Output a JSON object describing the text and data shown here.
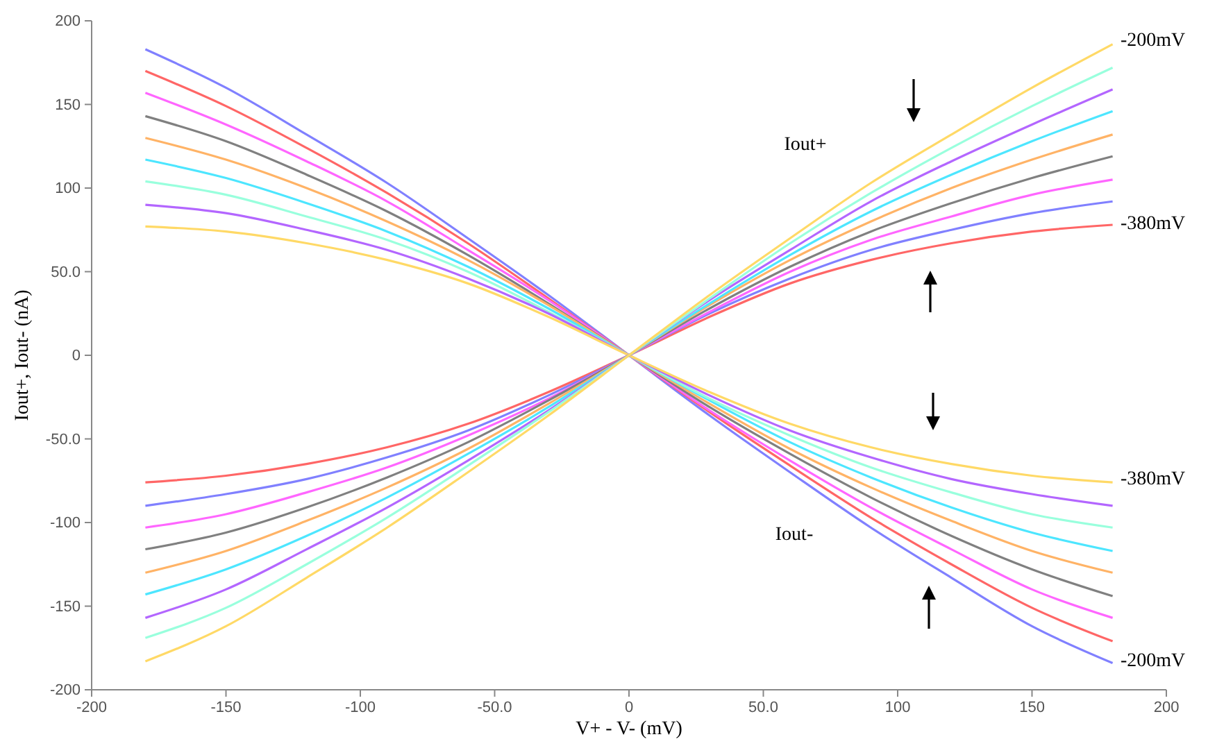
{
  "chart_data": {
    "type": "line",
    "xlabel": "V+ - V- (mV)",
    "ylabel": "Iout+, Iout- (nA)",
    "x": [
      -180,
      -150,
      -120,
      -90,
      -60,
      -30,
      0,
      30,
      60,
      90,
      120,
      150,
      180
    ],
    "xlim": [
      -200,
      200
    ],
    "ylim": [
      -200,
      200
    ],
    "xticks": [
      -200,
      -150,
      -100,
      {
        "value": -50,
        "label": "-50.0"
      },
      0,
      {
        "value": 50,
        "label": "50.0"
      },
      100,
      150,
      200
    ],
    "yticks": [
      -200,
      -150,
      -100,
      {
        "value": -50,
        "label": "-50.0"
      },
      0,
      {
        "value": 50,
        "label": "50.0"
      },
      100,
      150,
      200
    ],
    "grid": false,
    "marker": "none",
    "line_style": "solid",
    "series": [
      {
        "color": "#8080ff",
        "values": [
          183,
          160,
          132,
          103,
          70,
          36,
          0,
          -36,
          -70,
          -103,
          -133,
          -162,
          -184
        ]
      },
      {
        "color": "#ff6666",
        "values": [
          170,
          149,
          124,
          97,
          67,
          34,
          0,
          -34,
          -66,
          -97,
          -125,
          -151,
          -171
        ]
      },
      {
        "color": "#ff66ff",
        "values": [
          157,
          138,
          116,
          92,
          63,
          33,
          0,
          -33,
          -63,
          -91,
          -116,
          -140,
          -157
        ]
      },
      {
        "color": "#808080",
        "values": [
          143,
          128,
          108,
          86,
          60,
          31,
          0,
          -31,
          -59,
          -85,
          -108,
          -128,
          -144
        ]
      },
      {
        "color": "#ffb366",
        "values": [
          130,
          117,
          100,
          80,
          57,
          30,
          0,
          -29,
          -56,
          -79,
          -99,
          -117,
          -130
        ]
      },
      {
        "color": "#4de6ff",
        "values": [
          117,
          106,
          91,
          74,
          53,
          28,
          0,
          -27,
          -52,
          -73,
          -91,
          -106,
          -117
        ]
      },
      {
        "color": "#99ffdd",
        "values": [
          104,
          96,
          83,
          69,
          50,
          26,
          0,
          -26,
          -48,
          -67,
          -82,
          -95,
          -103
        ]
      },
      {
        "color": "#b366ff",
        "values": [
          90,
          85,
          75,
          63,
          46,
          25,
          0,
          -24,
          -45,
          -61,
          -74,
          -83,
          -90
        ]
      },
      {
        "color": "#ffd966",
        "values": [
          77,
          74,
          67,
          57,
          43,
          23,
          0,
          -22,
          -41,
          -55,
          -65,
          -72,
          -76
        ]
      },
      {
        "color": "#ff6666",
        "values": [
          -76,
          -72,
          -65,
          -55,
          -41,
          -22,
          0,
          23,
          43,
          57,
          67,
          74,
          78
        ]
      },
      {
        "color": "#8080ff",
        "values": [
          -90,
          -83,
          -74,
          -61,
          -45,
          -24,
          0,
          25,
          46,
          63,
          75,
          85,
          92
        ]
      },
      {
        "color": "#ff66ff",
        "values": [
          -103,
          -95,
          -82,
          -67,
          -48,
          -26,
          0,
          26,
          50,
          69,
          83,
          96,
          105
        ]
      },
      {
        "color": "#808080",
        "values": [
          -116,
          -106,
          -91,
          -73,
          -52,
          -27,
          0,
          28,
          53,
          74,
          91,
          106,
          119
        ]
      },
      {
        "color": "#ffb366",
        "values": [
          -130,
          -117,
          -99,
          -79,
          -56,
          -29,
          0,
          30,
          57,
          80,
          100,
          117,
          132
        ]
      },
      {
        "color": "#4de6ff",
        "values": [
          -143,
          -128,
          -108,
          -85,
          -59,
          -31,
          0,
          31,
          60,
          86,
          108,
          128,
          146
        ]
      },
      {
        "color": "#b366ff",
        "values": [
          -157,
          -140,
          -116,
          -91,
          -63,
          -33,
          0,
          33,
          63,
          92,
          116,
          138,
          159
        ]
      },
      {
        "color": "#99ffdd",
        "values": [
          -169,
          -151,
          -125,
          -97,
          -66,
          -34,
          0,
          34,
          67,
          97,
          124,
          149,
          172
        ]
      },
      {
        "color": "#ffd966",
        "values": [
          -183,
          -162,
          -133,
          -103,
          -70,
          -36,
          0,
          36,
          70,
          103,
          132,
          160,
          186
        ]
      }
    ],
    "annotations": [
      "Iout+",
      "Iout-",
      "-200mV",
      "-380mV",
      "-380mV",
      "-200mV"
    ]
  }
}
